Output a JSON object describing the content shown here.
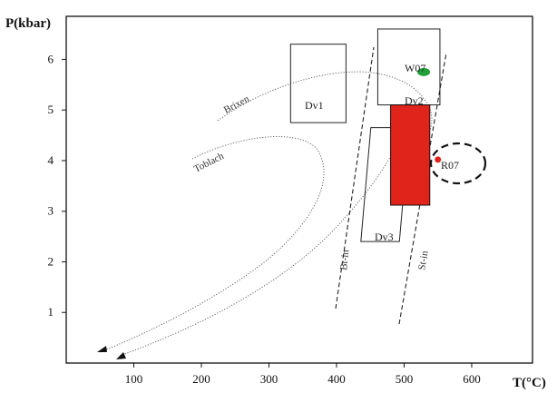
{
  "chart_data": {
    "type": "scatter",
    "xlabel": "T(°C)",
    "ylabel": "P(kbar)",
    "xlim": [
      0,
      690
    ],
    "ylim": [
      0,
      6.85
    ],
    "x_ticks": [
      100,
      200,
      300,
      400,
      500,
      600
    ],
    "y_ticks": [
      1,
      2,
      3,
      4,
      5,
      6
    ],
    "grid": false,
    "legend": "none",
    "fields": [
      {
        "name": "Dv1",
        "x_range": [
          332,
          414
        ],
        "y_range": [
          4.75,
          6.3
        ],
        "fill": "none"
      },
      {
        "name": "Dv2",
        "x_range": [
          461,
          553
        ],
        "y_range": [
          5.1,
          6.6
        ],
        "fill": "none"
      },
      {
        "name": "Dv3",
        "x_range": [
          436,
          493
        ],
        "y_range": [
          2.4,
          4.65
        ],
        "fill": "none"
      },
      {
        "name": "",
        "x_range": [
          480,
          538
        ],
        "y_range": [
          3.12,
          5.1
        ],
        "fill": "#e0241b"
      }
    ],
    "points": [
      {
        "name": "W07",
        "x": 529,
        "y": 5.75,
        "color": "#1f9e3a"
      },
      {
        "name": "R07",
        "x": 550,
        "y": 4.02,
        "color": "#e0241b"
      }
    ],
    "curves": [
      {
        "name": "Brixen"
      },
      {
        "name": "Toblach"
      }
    ],
    "reaction_lines": [
      {
        "name": "Bt-in"
      },
      {
        "name": "St-in"
      }
    ]
  },
  "colors": {
    "red_field": "#e0241b",
    "green_point": "#1f9e3a",
    "red_point": "#e0241b"
  }
}
